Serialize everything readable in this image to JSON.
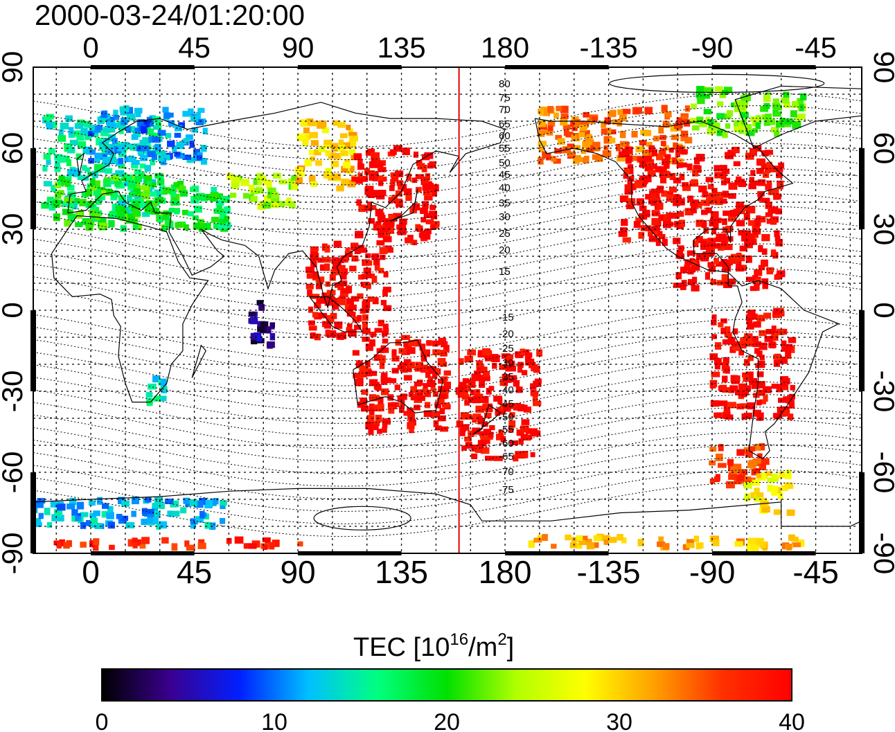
{
  "title": "2000-03-24/01:20:00",
  "colorbar": {
    "label_main": "TEC  [10",
    "label_sup1": "16",
    "label_mid": "/m",
    "label_sup2": "2",
    "label_end": "]",
    "min": 0,
    "max": 40,
    "ticks": [
      "0",
      "10",
      "20",
      "30",
      "40"
    ],
    "colors": [
      "#000000",
      "#3a0090",
      "#0020ff",
      "#00c0ff",
      "#00ff80",
      "#00e000",
      "#b0ff00",
      "#ffff00",
      "#ffa000",
      "#ff3000",
      "#ff0000"
    ]
  },
  "chart_data": {
    "type": "heatmap",
    "title": "2000-03-24/01:20:00",
    "xlim": [
      -25,
      335
    ],
    "ylim": [
      -90,
      90
    ],
    "x_ticks": [
      {
        "lon": 0,
        "label": "0"
      },
      {
        "lon": 45,
        "label": "45"
      },
      {
        "lon": 90,
        "label": "90"
      },
      {
        "lon": 135,
        "label": "135"
      },
      {
        "lon": 180,
        "label": "180"
      },
      {
        "lon": 225,
        "label": "-135"
      },
      {
        "lon": 270,
        "label": "-90"
      },
      {
        "lon": 315,
        "label": "-45"
      }
    ],
    "y_ticks": [
      {
        "lat": 90,
        "label": "90"
      },
      {
        "lat": 60,
        "label": "60"
      },
      {
        "lat": 30,
        "label": "30"
      },
      {
        "lat": 0,
        "label": "0"
      },
      {
        "lat": -30,
        "label": "-30"
      },
      {
        "lat": -60,
        "label": "-60"
      },
      {
        "lat": -90,
        "label": "-90"
      }
    ],
    "grid": true,
    "midnight_meridian_lon": 160,
    "magnetic_latitude_labels": [
      "80",
      "75",
      "70",
      "65",
      "60",
      "55",
      "50",
      "45",
      "40",
      "35",
      "30",
      "25",
      "20",
      "15",
      "-15",
      "-20",
      "-25",
      "-30",
      "-35",
      "-40",
      "-45",
      "-50",
      "-55",
      "-60",
      "-65",
      "-70",
      "-75"
    ],
    "tec_regions": [
      {
        "lon": [
          -20,
          30
        ],
        "lat": [
          35,
          72
        ],
        "tec": 15
      },
      {
        "lon": [
          0,
          50
        ],
        "lat": [
          55,
          75
        ],
        "tec": 11
      },
      {
        "lon": [
          -15,
          40
        ],
        "lat": [
          30,
          50
        ],
        "tec": 20
      },
      {
        "lon": [
          30,
          60
        ],
        "lat": [
          30,
          45
        ],
        "tec": 18
      },
      {
        "lon": [
          60,
          90
        ],
        "lat": [
          38,
          50
        ],
        "tec": 24
      },
      {
        "lon": [
          90,
          115
        ],
        "lat": [
          45,
          70
        ],
        "tec": 30
      },
      {
        "lon": [
          115,
          150
        ],
        "lat": [
          25,
          60
        ],
        "tec": 40
      },
      {
        "lon": [
          95,
          130
        ],
        "lat": [
          -10,
          25
        ],
        "tec": 40
      },
      {
        "lon": [
          115,
          155
        ],
        "lat": [
          -45,
          -10
        ],
        "tec": 40
      },
      {
        "lon": [
          160,
          195
        ],
        "lat": [
          -55,
          -15
        ],
        "tec": 40
      },
      {
        "lon": [
          195,
          260
        ],
        "lat": [
          55,
          75
        ],
        "tec": 34
      },
      {
        "lon": [
          230,
          300
        ],
        "lat": [
          25,
          60
        ],
        "tec": 40
      },
      {
        "lon": [
          255,
          300
        ],
        "lat": [
          8,
          25
        ],
        "tec": 40
      },
      {
        "lon": [
          270,
          305
        ],
        "lat": [
          -40,
          0
        ],
        "tec": 40
      },
      {
        "lon": [
          270,
          295
        ],
        "lat": [
          -65,
          -50
        ],
        "tec": 36
      },
      {
        "lon": [
          285,
          305
        ],
        "lat": [
          -75,
          -60
        ],
        "tec": 28
      },
      {
        "lon": [
          260,
          310
        ],
        "lat": [
          65,
          82
        ],
        "tec": 22
      },
      {
        "lon": [
          70,
          80
        ],
        "lat": [
          -15,
          5
        ],
        "tec": 4
      },
      {
        "lon": [
          25,
          35
        ],
        "lat": [
          -35,
          -25
        ],
        "tec": 14
      },
      {
        "lon": [
          -25,
          60
        ],
        "lat": [
          -80,
          -70
        ],
        "tec": 12
      },
      {
        "lon": [
          -15,
          95
        ],
        "lat": [
          -88,
          -85
        ],
        "tec": 37
      },
      {
        "lon": [
          190,
          310
        ],
        "lat": [
          -88,
          -84
        ],
        "tec": 31
      }
    ]
  }
}
